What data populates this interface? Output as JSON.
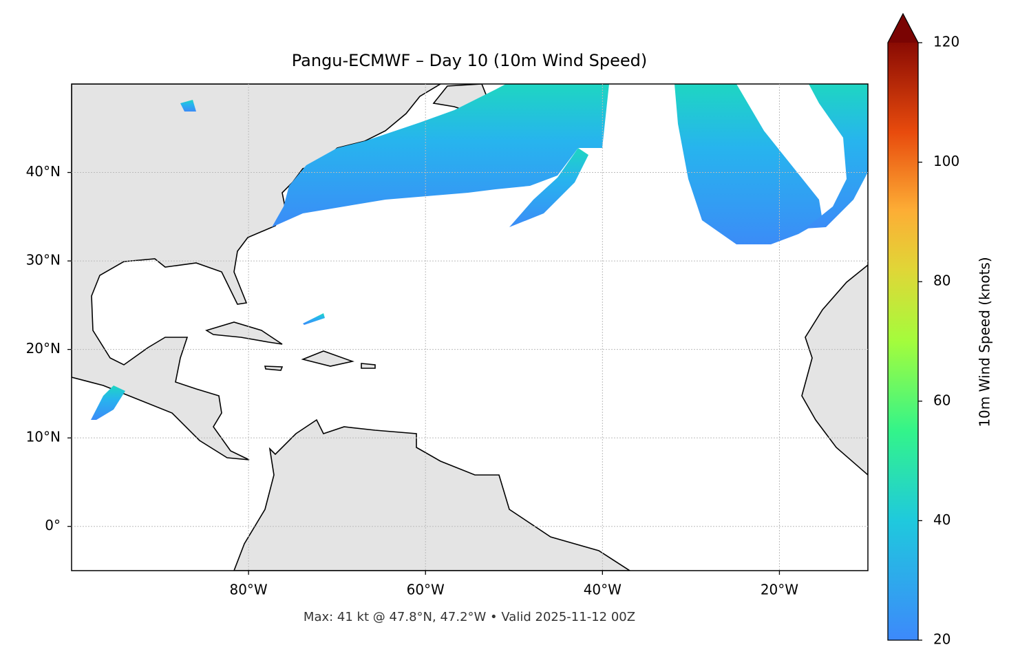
{
  "title": "Pangu-ECMWF – Day 10 (10m Wind Speed)",
  "footer": "Max: 41 kt @ 47.8°N, 47.2°W • Valid 2025-11-12 00Z",
  "map": {
    "xlim": [
      -100,
      -10
    ],
    "ylim": [
      -5,
      50
    ],
    "grid": true,
    "xticks": [
      {
        "value": -80,
        "label": "80°W"
      },
      {
        "value": -60,
        "label": "60°W"
      },
      {
        "value": -40,
        "label": "40°W"
      },
      {
        "value": -20,
        "label": "20°W"
      }
    ],
    "yticks": [
      {
        "value": 0,
        "label": "0°"
      },
      {
        "value": 10,
        "label": "10°N"
      },
      {
        "value": 20,
        "label": "20°N"
      },
      {
        "value": 30,
        "label": "30°N"
      },
      {
        "value": 40,
        "label": "40°N"
      }
    ]
  },
  "colorbar": {
    "label": "10m Wind Speed (knots)",
    "lim": [
      20,
      120
    ],
    "ticks": [
      20,
      40,
      60,
      80,
      100,
      120
    ]
  }
}
